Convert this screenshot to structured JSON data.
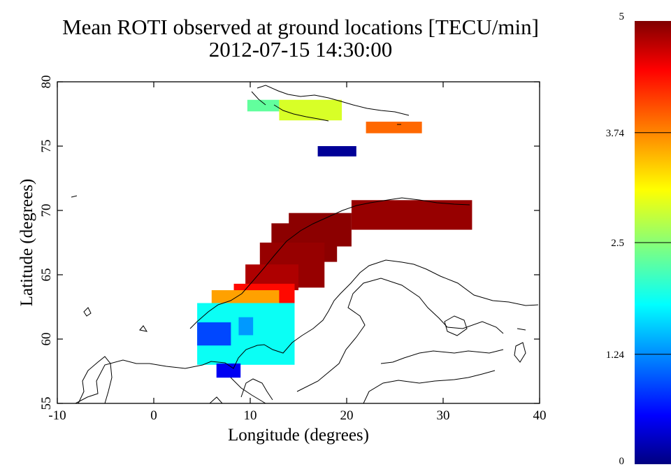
{
  "title": "Mean ROTI observed at ground locations [TECU/min]",
  "subtitle": "2012-07-15 14:30:00",
  "chart_data": {
    "type": "heatmap",
    "title": "Mean ROTI observed at ground locations [TECU/min]",
    "subtitle": "2012-07-15 14:30:00",
    "xlabel": "Longitude (degrees)",
    "ylabel": "Latitude (degrees)",
    "xlim": [
      -10,
      40
    ],
    "ylim": [
      55,
      80
    ],
    "xticks": [
      -10,
      0,
      10,
      20,
      30,
      40
    ],
    "yticks": [
      55,
      60,
      65,
      70,
      75,
      80
    ],
    "grid": false,
    "colorbar": {
      "min": 0,
      "max": 5,
      "ticks": [
        0,
        1.24,
        2.5,
        3.74,
        5
      ],
      "tick_labels": [
        "0",
        "1.24",
        "2.5",
        "3.74",
        "5"
      ],
      "colormap": "jet",
      "placement": "right"
    },
    "cells": [
      {
        "lon": [
          9.7,
          13.0
        ],
        "lat": [
          77.7,
          78.6
        ],
        "value": 2.3
      },
      {
        "lon": [
          13.0,
          19.5
        ],
        "lat": [
          77.0,
          78.6
        ],
        "value": 2.9
      },
      {
        "lon": [
          22.0,
          27.8
        ],
        "lat": [
          76.0,
          76.9
        ],
        "value": 3.9
      },
      {
        "lon": [
          17.0,
          21.0
        ],
        "lat": [
          74.2,
          75.0
        ],
        "value": 0.1
      },
      {
        "lon": [
          20.5,
          33.0
        ],
        "lat": [
          68.5,
          70.8
        ],
        "value": 4.9
      },
      {
        "lon": [
          14.0,
          20.5
        ],
        "lat": [
          67.2,
          69.8
        ],
        "value": 4.95
      },
      {
        "lon": [
          12.2,
          19.0
        ],
        "lat": [
          66.0,
          69.0
        ],
        "value": 4.95
      },
      {
        "lon": [
          11.0,
          17.7
        ],
        "lat": [
          64.0,
          67.5
        ],
        "value": 4.9
      },
      {
        "lon": [
          9.5,
          15.0
        ],
        "lat": [
          63.8,
          65.8
        ],
        "value": 4.8
      },
      {
        "lon": [
          8.3,
          14.6
        ],
        "lat": [
          62.8,
          64.3
        ],
        "value": 4.4
      },
      {
        "lon": [
          6.0,
          13.0
        ],
        "lat": [
          62.7,
          63.8
        ],
        "value": 3.6
      },
      {
        "lon": [
          4.5,
          14.6
        ],
        "lat": [
          58.0,
          62.8
        ],
        "value": 1.85
      },
      {
        "lon": [
          4.5,
          8.0
        ],
        "lat": [
          59.5,
          61.3
        ],
        "value": 0.9
      },
      {
        "lon": [
          8.8,
          10.3
        ],
        "lat": [
          60.3,
          61.7
        ],
        "value": 1.3
      },
      {
        "lon": [
          6.5,
          9.0
        ],
        "lat": [
          57.0,
          58.1
        ],
        "value": 0.5
      }
    ]
  }
}
